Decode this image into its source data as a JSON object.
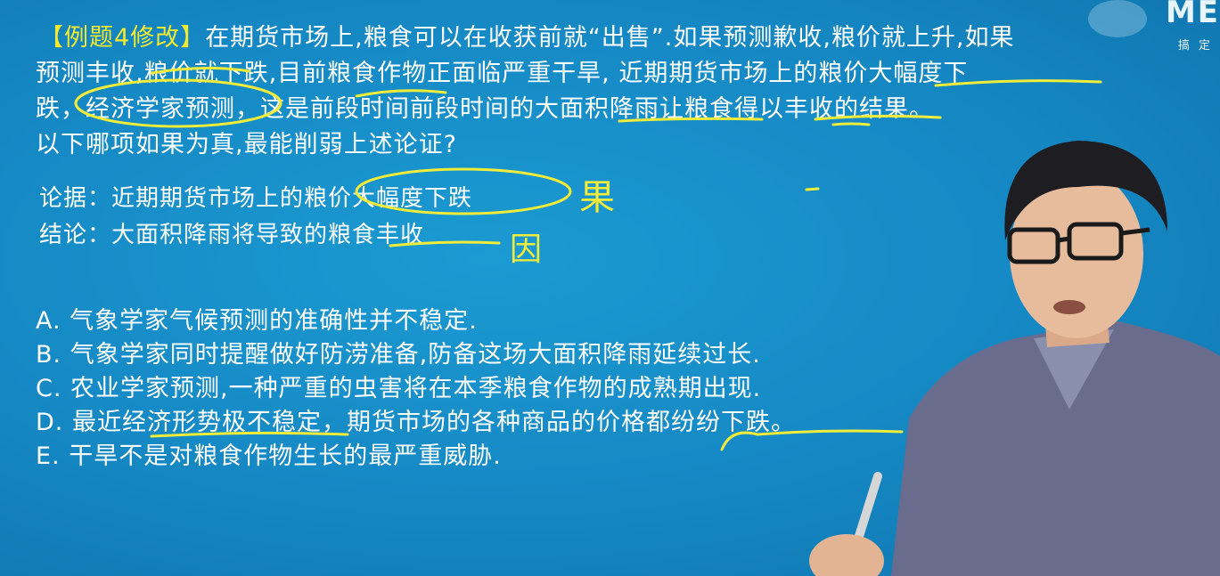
{
  "question": {
    "tag": "【例题4修改】",
    "line1": "在期货市场上,粮食可以在收获前就“出售”.如果预测歉收,粮价就上升,如果",
    "line2": "预测丰收,粮价就下跌,目前粮食作物正面临严重干旱, 近期期货市场上的粮价大幅度下",
    "line3": "跌，经济学家预测，这是前段时间前段时间的大面积降雨让粮食得以丰收的结果。",
    "line4": "以下哪项如果为真,最能削弱上述论证?"
  },
  "analysis": {
    "premise": "论据：近期期货市场上的粮价大幅度下跌",
    "conclusion": "结论：大面积降雨将导致的粮食丰收"
  },
  "handwriting": {
    "effect": "果",
    "cause": "因"
  },
  "options": [
    {
      "text": "A. 气象学家气候预测的准确性并不稳定."
    },
    {
      "text": "B. 气象学家同时提醒做好防涝准备,防备这场大面积降雨延续过长."
    },
    {
      "text": "C. 农业学家预测,一种严重的虫害将在本季粮食作物的成熟期出现."
    },
    {
      "text": "D. 最近经济形势极不稳定，期货市场的各种商品的价格都纷纷下跌。"
    },
    {
      "text": "E. 干旱不是对粮食作物生长的最严重威胁."
    }
  ],
  "logo": {
    "text": "ME",
    "subtitle": "搞 定"
  },
  "colors": {
    "background": "#1588c4",
    "text": "#ffffff",
    "tag": "#f2ea2f",
    "ink": "#f0ec3a"
  }
}
